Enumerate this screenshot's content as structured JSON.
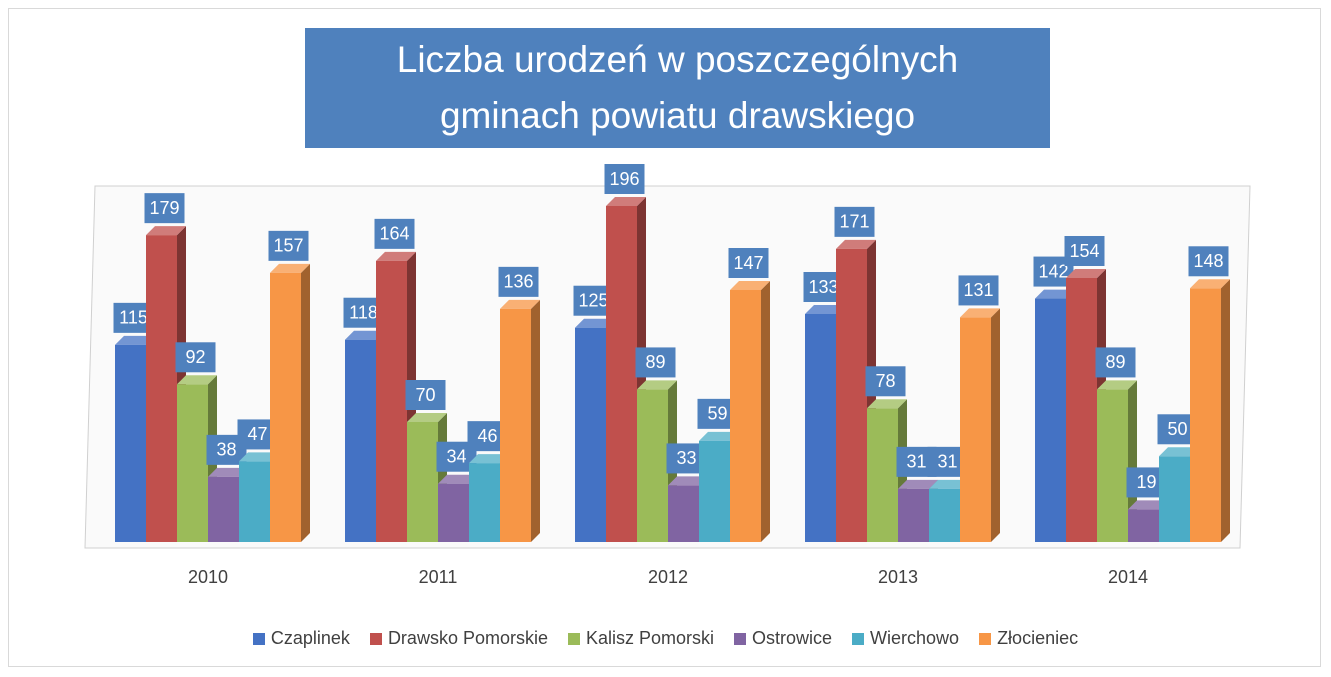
{
  "chart_data": {
    "type": "bar3d",
    "title": "Liczba urodzeń w poszczególnych gminach powiatu drawskiego",
    "categories": [
      "2010",
      "2011",
      "2012",
      "2013",
      "2014"
    ],
    "series": [
      {
        "name": "Czaplinek",
        "color": "#4472c4",
        "values": [
          115,
          118,
          125,
          133,
          142
        ]
      },
      {
        "name": "Drawsko Pomorskie",
        "color": "#c0504d",
        "values": [
          179,
          164,
          196,
          171,
          154
        ]
      },
      {
        "name": "Kalisz Pomorski",
        "color": "#9bbb59",
        "values": [
          92,
          70,
          89,
          78,
          89
        ]
      },
      {
        "name": "Ostrowice",
        "color": "#8064a2",
        "values": [
          38,
          34,
          33,
          31,
          19
        ]
      },
      {
        "name": "Wierchowo",
        "color": "#4bacc6",
        "values": [
          47,
          46,
          59,
          31,
          50
        ]
      },
      {
        "name": "Złocieniec",
        "color": "#f79646",
        "values": [
          157,
          136,
          147,
          131,
          148
        ]
      }
    ],
    "ylim": [
      0,
      210
    ]
  }
}
